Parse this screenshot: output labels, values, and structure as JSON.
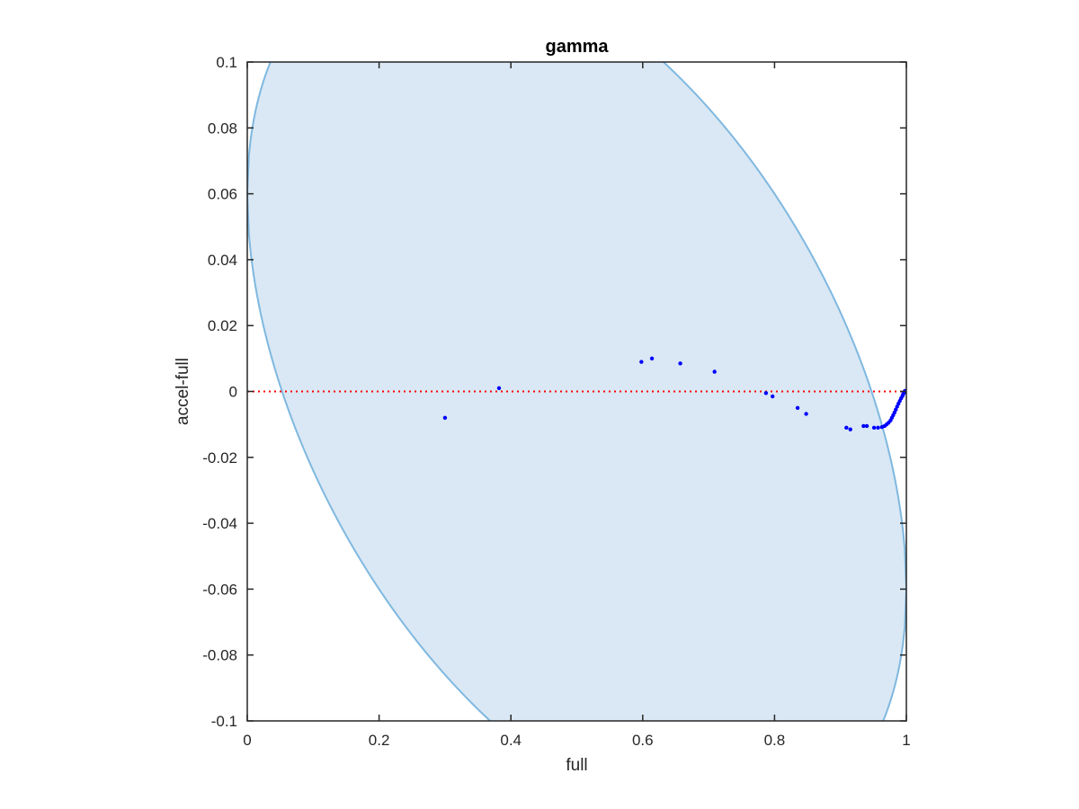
{
  "chart_data": {
    "type": "scatter",
    "title": "gamma",
    "xlabel": "full",
    "ylabel": "accel-full",
    "xlim": [
      0,
      1
    ],
    "ylim": [
      -0.1,
      0.1
    ],
    "xticks": [
      0,
      0.2,
      0.4,
      0.6,
      0.8,
      1
    ],
    "xtick_labels": [
      "0",
      "0.2",
      "0.4",
      "0.6",
      "0.8",
      "1"
    ],
    "yticks": [
      -0.1,
      -0.08,
      -0.06,
      -0.04,
      -0.02,
      0,
      0.02,
      0.04,
      0.06,
      0.08,
      0.1
    ],
    "ytick_labels": [
      "-0.1",
      "-0.08",
      "-0.06",
      "-0.04",
      "-0.02",
      "0",
      "0.02",
      "0.04",
      "0.06",
      "0.08",
      "0.1"
    ],
    "grid": false,
    "reference_line": {
      "y": 0,
      "style": "dotted",
      "color": "#ff0000"
    },
    "band": {
      "description": "shaded region bounded by y = ±0.24·sqrt(x·(1−x)) + 0.06·(1−2x)",
      "fill": "#d9e8f4",
      "stroke": "#7fb8e0"
    },
    "series": [
      {
        "color": "#0000ff",
        "points": [
          [
            0.3,
            -0.008
          ],
          [
            0.382,
            0.001
          ],
          [
            0.598,
            0.009
          ],
          [
            0.614,
            0.01
          ],
          [
            0.657,
            0.0085
          ],
          [
            0.709,
            0.006
          ],
          [
            0.787,
            -0.0005
          ],
          [
            0.797,
            -0.0015
          ],
          [
            0.835,
            -0.005
          ],
          [
            0.848,
            -0.0068
          ],
          [
            0.909,
            -0.011
          ],
          [
            0.915,
            -0.0115
          ],
          [
            0.935,
            -0.0105
          ],
          [
            0.94,
            -0.0105
          ],
          [
            0.951,
            -0.011
          ],
          [
            0.957,
            -0.011
          ],
          [
            0.963,
            -0.0108
          ],
          [
            0.967,
            -0.0105
          ],
          [
            0.97,
            -0.01
          ],
          [
            0.973,
            -0.0095
          ],
          [
            0.976,
            -0.0088
          ],
          [
            0.978,
            -0.008
          ],
          [
            0.98,
            -0.0072
          ],
          [
            0.982,
            -0.0064
          ],
          [
            0.984,
            -0.0055
          ],
          [
            0.986,
            -0.0046
          ],
          [
            0.988,
            -0.0037
          ],
          [
            0.99,
            -0.0029
          ],
          [
            0.992,
            -0.0021
          ],
          [
            0.994,
            -0.0014
          ],
          [
            0.995,
            -0.0009
          ],
          [
            0.996,
            -0.0005
          ],
          [
            0.997,
            -0.0003
          ],
          [
            0.998,
            -0.0001
          ],
          [
            0.999,
            0.0
          ],
          [
            1.0,
            0.0
          ],
          [
            0.9985,
            0.0002
          ],
          [
            0.9975,
            0.0001
          ]
        ]
      }
    ]
  }
}
